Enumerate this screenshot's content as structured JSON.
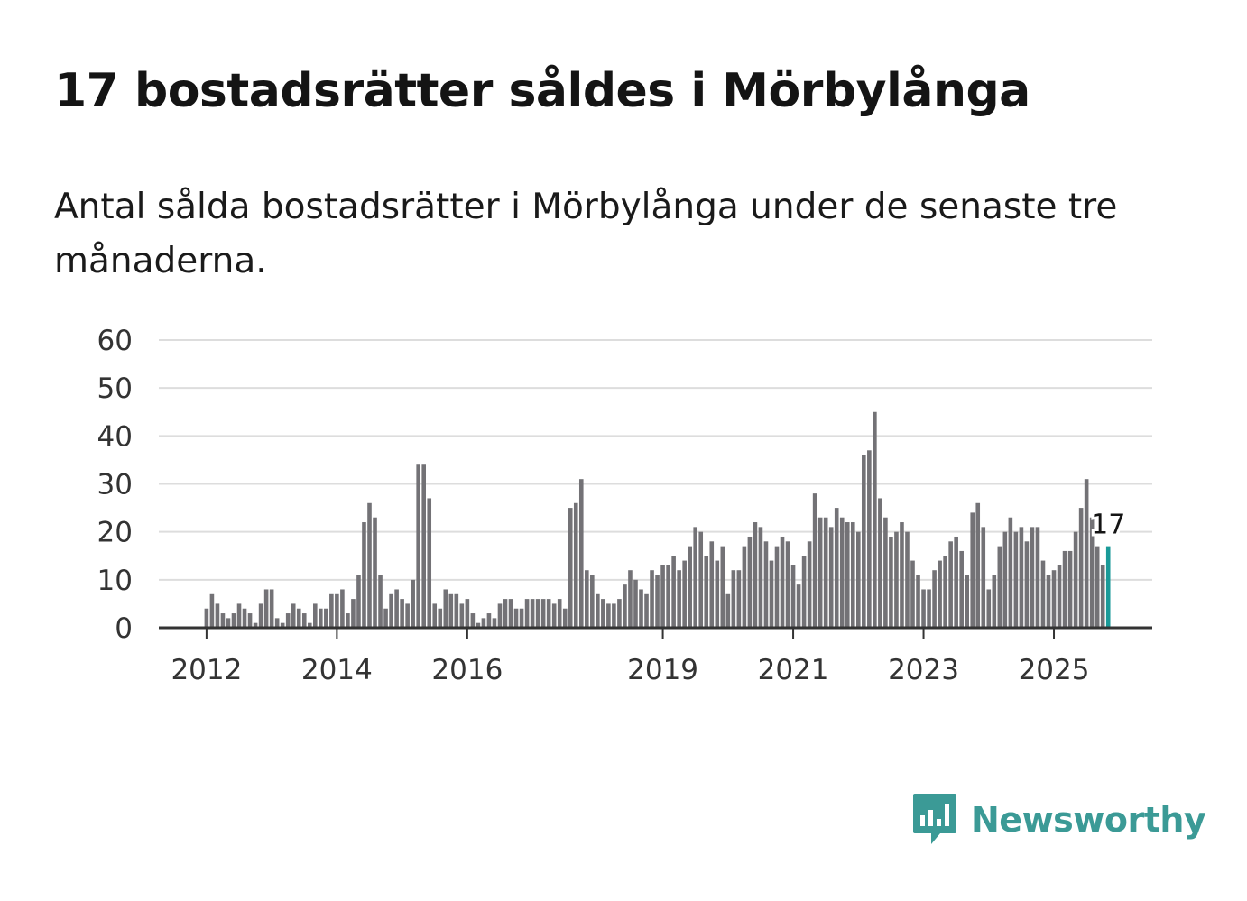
{
  "header": {
    "title": "17 bostadsrätter såldes i Mörbylånga",
    "subtitle": "Antal sålda bostadsrätter i Mörbylånga under de senaste tre månaderna."
  },
  "brand": {
    "name": "Newsworthy",
    "color": "#3b9a96"
  },
  "colors": {
    "bar": "#737276",
    "highlight": "#1a9a98",
    "grid": "#dddddd",
    "axis": "#333333"
  },
  "chart_data": {
    "type": "bar",
    "title": "17 bostadsrätter såldes i Mörbylånga",
    "subtitle": "Antal sålda bostadsrätter i Mörbylånga under de senaste tre månaderna.",
    "xlabel": "",
    "ylabel": "",
    "ylim": [
      0,
      60
    ],
    "yticks": [
      0,
      10,
      20,
      30,
      40,
      50,
      60
    ],
    "x_tick_labels": [
      {
        "label": "2012",
        "index": 0
      },
      {
        "label": "2014",
        "index": 24
      },
      {
        "label": "2016",
        "index": 48
      },
      {
        "label": "2019",
        "index": 84
      },
      {
        "label": "2021",
        "index": 108
      },
      {
        "label": "2023",
        "index": 132
      },
      {
        "label": "2025",
        "index": 156
      }
    ],
    "start": "2012-01",
    "grid": true,
    "highlight_index": 166,
    "highlight_label": "17",
    "values": [
      4,
      7,
      5,
      3,
      2,
      3,
      5,
      4,
      3,
      1,
      5,
      8,
      8,
      2,
      1,
      3,
      5,
      4,
      3,
      1,
      5,
      4,
      4,
      7,
      7,
      8,
      3,
      6,
      11,
      22,
      26,
      23,
      11,
      4,
      7,
      8,
      6,
      5,
      10,
      34,
      34,
      27,
      5,
      4,
      8,
      7,
      7,
      5,
      6,
      3,
      1,
      2,
      3,
      2,
      5,
      6,
      6,
      4,
      4,
      6,
      6,
      6,
      6,
      6,
      5,
      6,
      4,
      25,
      26,
      31,
      12,
      11,
      7,
      6,
      5,
      5,
      6,
      9,
      12,
      10,
      8,
      7,
      12,
      11,
      13,
      13,
      15,
      12,
      14,
      17,
      21,
      20,
      15,
      18,
      14,
      17,
      7,
      12,
      12,
      17,
      19,
      22,
      21,
      18,
      14,
      17,
      19,
      18,
      13,
      9,
      15,
      18,
      28,
      23,
      23,
      21,
      25,
      23,
      22,
      22,
      20,
      36,
      37,
      45,
      27,
      23,
      19,
      20,
      22,
      20,
      14,
      11,
      8,
      8,
      12,
      14,
      15,
      18,
      19,
      16,
      11,
      24,
      26,
      21,
      8,
      11,
      17,
      20,
      23,
      20,
      21,
      18,
      21,
      21,
      14,
      11,
      12,
      13,
      16,
      16,
      20,
      25,
      31,
      23,
      17,
      13,
      17
    ]
  }
}
